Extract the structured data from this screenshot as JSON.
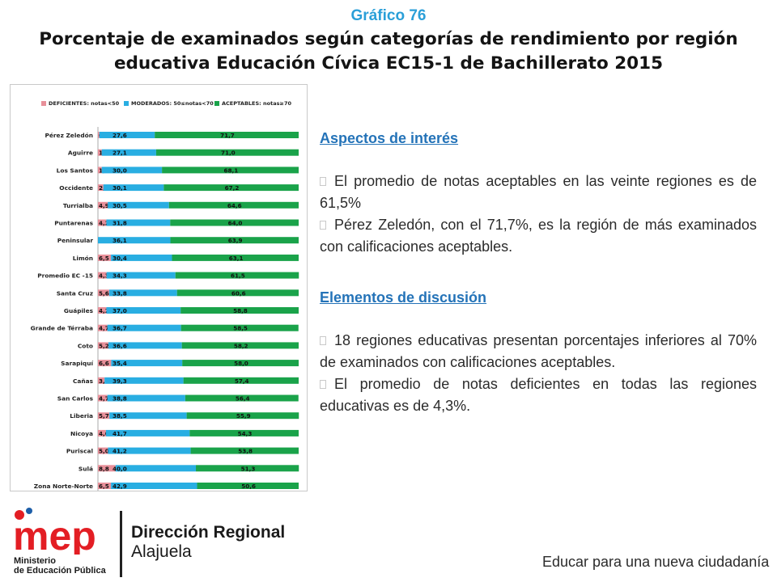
{
  "header": {
    "kicker": "Gráfico 76",
    "title_line1": "Porcentaje de examinados según categorías de rendimiento por región",
    "title_line2": "educativa Educación Cívica EC15-1 de Bachillerato 2015"
  },
  "colors": {
    "kicker": "#2a9fd8",
    "heading": "#2473b8",
    "deficientes": "#e8909a",
    "moderados": "#29aee2",
    "aceptables": "#1aa34a"
  },
  "chart_data": {
    "type": "bar",
    "orientation": "horizontal",
    "stacked": true,
    "legend_position": "top",
    "grid": false,
    "xlim": [
      0,
      100
    ],
    "categories": [
      "Pérez Zeledón",
      "Aguirre",
      "Los Santos",
      "Occidente",
      "Turrialba",
      "Puntarenas",
      "Peninsular",
      "Limón",
      "Promedio EC -15",
      "Santa Cruz",
      "Guápiles",
      "Grande de Térraba",
      "Coto",
      "Sarapiquí",
      "Cañas",
      "San Carlos",
      "Liberia",
      "Nicoya",
      "Puriscal",
      "Sulá",
      "Zona Norte-Norte"
    ],
    "series": [
      {
        "name": "DEFICIENTES: notas<50",
        "values": [
          0.7,
          1.9,
          1.9,
          2.7,
          4.9,
          4.2,
          0,
          6.5,
          4.3,
          5.6,
          4.2,
          4.7,
          5.2,
          6.6,
          3.3,
          4.7,
          5.7,
          4.0,
          5.0,
          8.8,
          6.5
        ],
        "labels": [
          "0,7",
          "1,9",
          "1,9",
          "2,7",
          "4,9",
          "4,2",
          "",
          "6,5",
          "4,3",
          "5,6",
          "4,2",
          "4,7",
          "5,2",
          "6,6",
          "3,3",
          "4,7",
          "5,7",
          "4,0",
          "5,0",
          "8,8",
          "6,5"
        ]
      },
      {
        "name": "MODERADOS: 50≤notas<70",
        "values": [
          27.6,
          27.1,
          30.0,
          30.1,
          30.5,
          31.8,
          36.1,
          30.4,
          34.3,
          33.8,
          37.0,
          36.7,
          36.6,
          35.4,
          39.3,
          38.8,
          38.5,
          41.7,
          41.2,
          40.0,
          42.9
        ],
        "labels": [
          "27,6",
          "27,1",
          "30,0",
          "30,1",
          "30,5",
          "31,8",
          "36,1",
          "30,4",
          "34,3",
          "33,8",
          "37,0",
          "36,7",
          "36,6",
          "35,4",
          "39,3",
          "38,8",
          "38,5",
          "41,7",
          "41,2",
          "40,0",
          "42,9"
        ]
      },
      {
        "name": "ACEPTABLES: notas≥70",
        "values": [
          71.7,
          71.0,
          68.1,
          67.2,
          64.6,
          64.0,
          63.9,
          63.1,
          61.5,
          60.6,
          58.8,
          58.5,
          58.2,
          58.0,
          57.4,
          56.4,
          55.9,
          54.3,
          53.8,
          51.3,
          50.6
        ],
        "labels": [
          "71,7",
          "71,0",
          "68,1",
          "67,2",
          "64,6",
          "64,0",
          "63,9",
          "63,1",
          "61,5",
          "60,6",
          "58,8",
          "58,5",
          "58,2",
          "58,0",
          "57,4",
          "56,4",
          "55,9",
          "54,3",
          "53,8",
          "51,3",
          "50,6"
        ]
      }
    ]
  },
  "aspectos": {
    "heading": "Aspectos de interés",
    "bullets": [
      "El promedio de notas aceptables en las veinte regiones es de 61,5%",
      "Pérez Zeledón, con el 71,7%, es la región de más examinados con calificaciones aceptables."
    ]
  },
  "discusion": {
    "heading": "Elementos de discusión",
    "bullets": [
      "18 regiones educativas presentan porcentajes inferiores al 70% de examinados con calificaciones aceptables.",
      "El promedio de notas deficientes en todas las regiones educativas es de 4,3%."
    ]
  },
  "footer": {
    "logo_text": "mep",
    "ministry_line1": "Ministerio",
    "ministry_line2": "de Educación Pública",
    "direccion": "Dirección Regional",
    "alajuela": "Alajuela",
    "tagline": "Educar para una nueva ciudadanía"
  }
}
